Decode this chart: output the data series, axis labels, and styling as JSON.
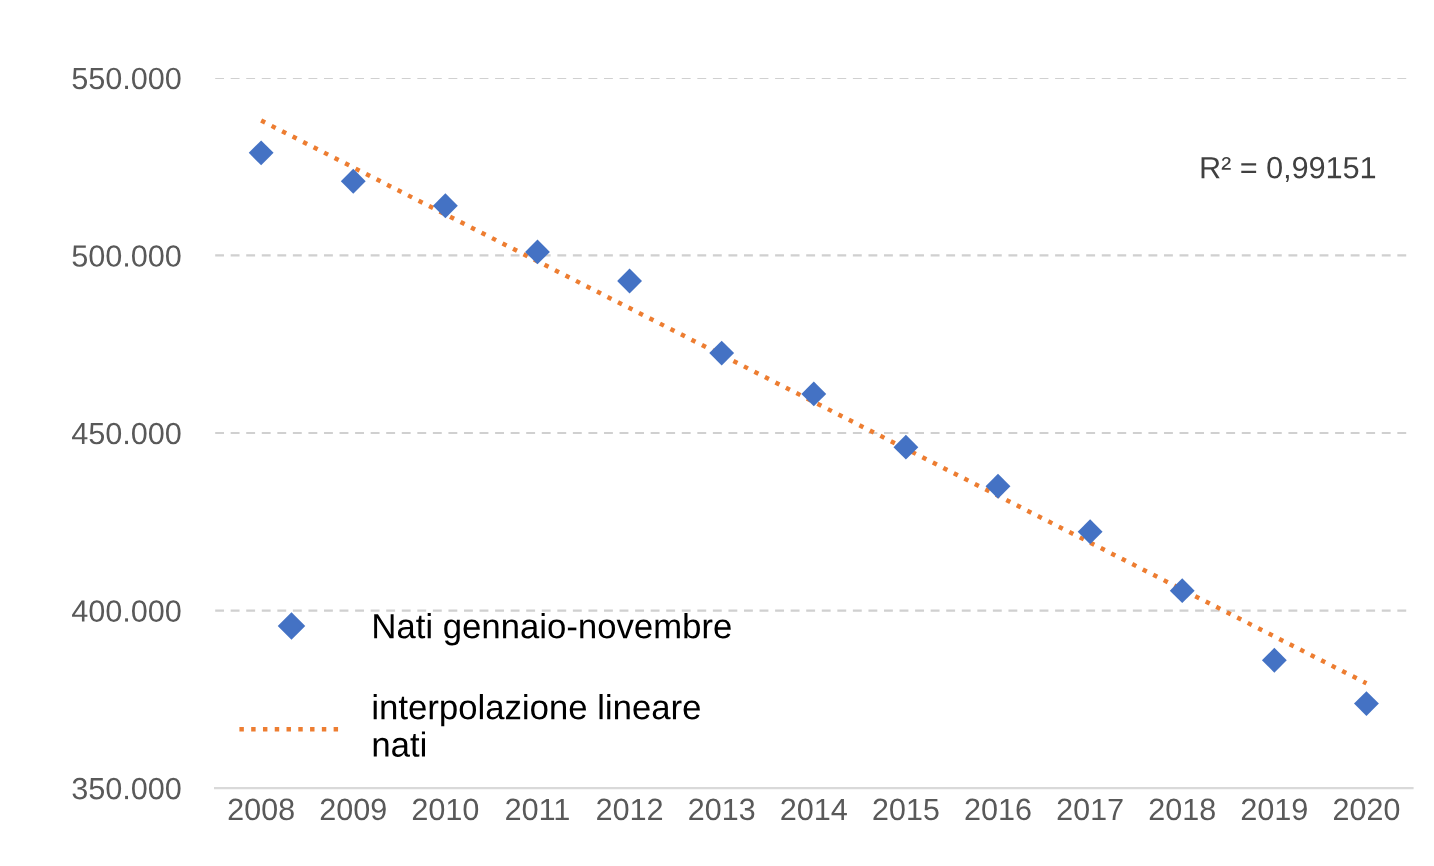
{
  "chart_data": {
    "type": "scatter",
    "x": [
      2008,
      2009,
      2010,
      2011,
      2012,
      2013,
      2014,
      2015,
      2016,
      2017,
      2018,
      2019,
      2020
    ],
    "series": [
      {
        "name": "Nati gennaio-novembre",
        "color": "#4472c4",
        "marker": "diamond",
        "values": [
          528.9,
          520.9,
          514.0,
          501.0,
          492.8,
          472.5,
          461.0,
          446.0,
          435.0,
          422.2,
          405.6,
          386.0,
          373.8
        ]
      },
      {
        "name": "interpolazione lineare\nnati",
        "type": "line",
        "color": "#ed7d31",
        "line_style": "dotted",
        "x": [
          2008,
          2020
        ],
        "values": [
          538.0,
          379.5
        ]
      }
    ],
    "xlim": [
      2007.5,
      2020.5
    ],
    "xticks": [
      2008,
      2009,
      2010,
      2011,
      2012,
      2013,
      2014,
      2015,
      2016,
      2017,
      2018,
      2019,
      2020
    ],
    "ylim": [
      350,
      550
    ],
    "yticks": [
      {
        "value": 350,
        "label": "350.000"
      },
      {
        "value": 400,
        "label": "400.000"
      },
      {
        "value": 450,
        "label": "450.000"
      },
      {
        "value": 500,
        "label": "500.000"
      },
      {
        "value": 550,
        "label": "550.000"
      }
    ],
    "grid": "y",
    "legend": "bottom left",
    "annotations": [
      "R² = 0,99151"
    ]
  }
}
